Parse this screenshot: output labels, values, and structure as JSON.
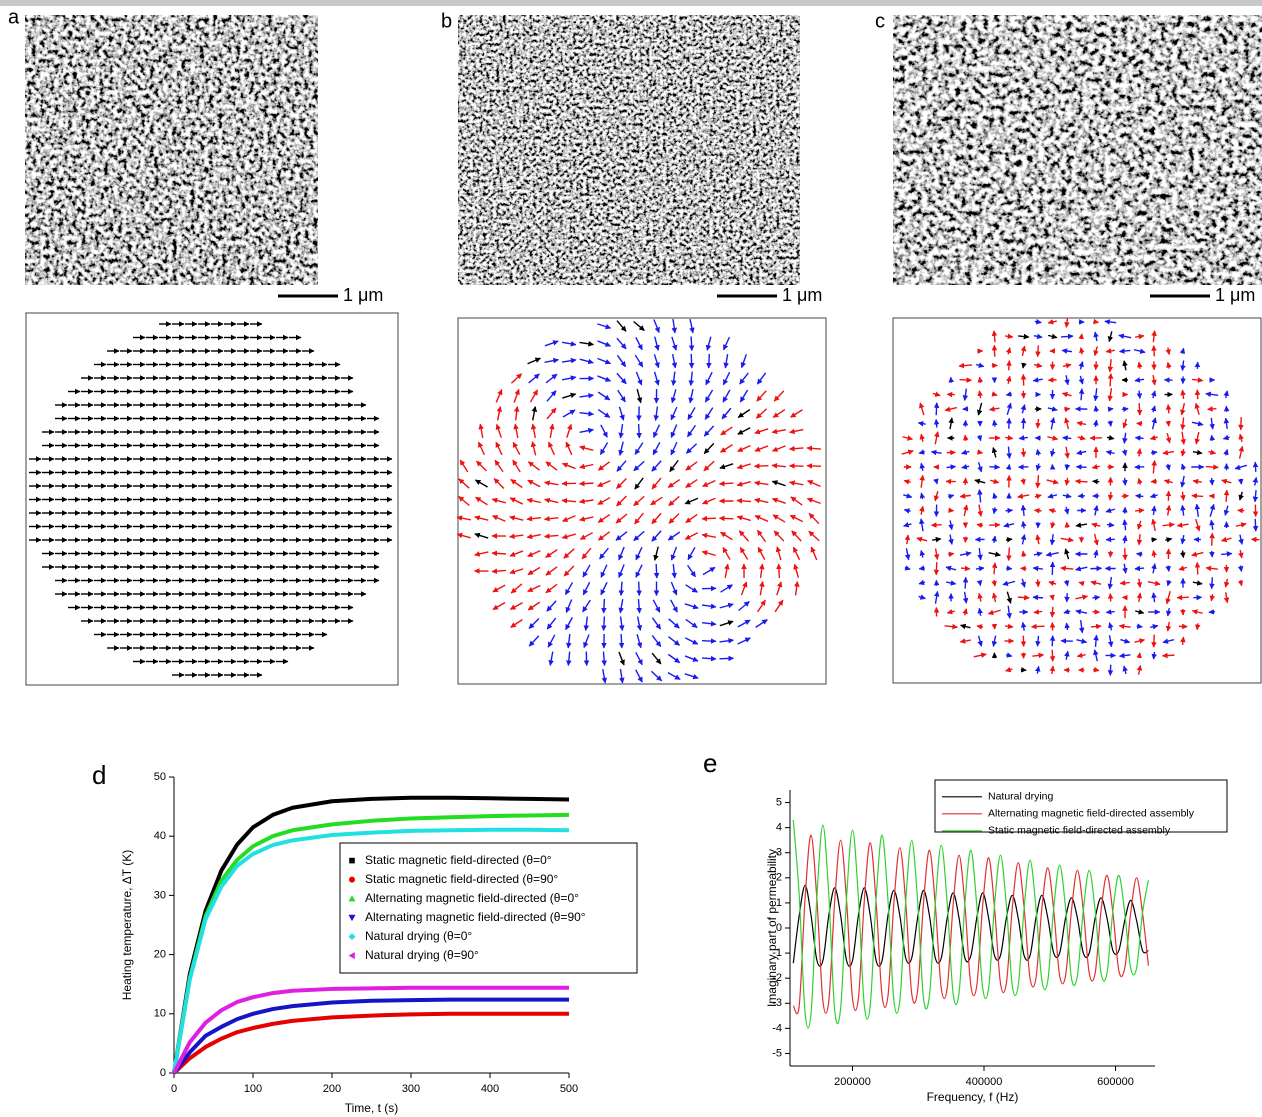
{
  "figure": {
    "panel_labels": [
      "a",
      "b",
      "c",
      "d",
      "e"
    ],
    "scale_bar": "1 μm"
  },
  "chart_data": [
    {
      "type": "line",
      "xlabel": "Time, t (s)",
      "ylabel": "Heating temperature, ΔT (K)",
      "x": [
        0,
        20,
        40,
        60,
        80,
        100,
        125,
        150,
        200,
        250,
        300,
        350,
        400,
        450,
        500
      ],
      "xlim": [
        0,
        500
      ],
      "xticks": [
        0,
        100,
        200,
        300,
        400,
        500
      ],
      "ylim": [
        0,
        50
      ],
      "yticks": [
        0,
        10,
        20,
        30,
        40,
        50
      ],
      "legend": "center right",
      "grid": false,
      "series": [
        {
          "name": "Static magnetic field-directed (θ=0°",
          "color": "#000000",
          "marker": "square",
          "values": [
            0,
            16.7,
            27.4,
            34.2,
            38.6,
            41.5,
            43.6,
            44.8,
            45.9,
            46.3,
            46.5,
            46.5,
            46.4,
            46.3,
            46.2
          ]
        },
        {
          "name": "Static magnetic field-directed (θ=90°",
          "color": "#e60000",
          "marker": "circle",
          "values": [
            0,
            2.5,
            4.4,
            5.8,
            6.9,
            7.6,
            8.3,
            8.8,
            9.4,
            9.7,
            9.9,
            10.0,
            10.0,
            10.0,
            10.0
          ]
        },
        {
          "name": "Alternating magnetic field-directed (θ=0°",
          "color": "#22dd22",
          "marker": "triangle-up",
          "values": [
            0,
            16.0,
            26.5,
            32.5,
            36.0,
            38.3,
            40.0,
            41.0,
            42.0,
            42.6,
            43.0,
            43.2,
            43.4,
            43.5,
            43.6
          ]
        },
        {
          "name": "Alternating magnetic field-directed (θ=90°",
          "color": "#1515c8",
          "marker": "triangle-down",
          "values": [
            0,
            3.5,
            6.3,
            7.8,
            9.1,
            10.0,
            10.8,
            11.3,
            11.9,
            12.2,
            12.3,
            12.4,
            12.4,
            12.4,
            12.4
          ]
        },
        {
          "name": "Natural drying (θ=0°",
          "color": "#22e0e0",
          "marker": "diamond",
          "values": [
            0,
            15.8,
            26.0,
            31.5,
            35.0,
            37.0,
            38.5,
            39.3,
            40.2,
            40.6,
            40.9,
            41.0,
            41.1,
            41.1,
            41.0
          ]
        },
        {
          "name": "Natural drying (θ=90°",
          "color": "#e020e0",
          "marker": "triangle-left",
          "values": [
            0,
            5.2,
            8.5,
            10.6,
            12.0,
            12.8,
            13.5,
            13.9,
            14.2,
            14.3,
            14.4,
            14.4,
            14.4,
            14.4,
            14.4
          ]
        }
      ]
    },
    {
      "type": "line",
      "xlabel": "Frequency, f (Hz)",
      "ylabel": "Imaginary part of permeability",
      "x": [
        110000,
        119000,
        128000,
        137000,
        146000,
        155000,
        164000,
        173000,
        182000,
        191000,
        200000,
        209000,
        218000,
        227000,
        236000,
        245000,
        254000,
        263000,
        272000,
        281000,
        290000,
        299000,
        308000,
        317000,
        326000,
        335000,
        344000,
        353000,
        362000,
        371000,
        380000,
        389000,
        398000,
        407000,
        416000,
        425000,
        434000,
        443000,
        452000,
        461000,
        470000,
        479000,
        488000,
        497000,
        506000,
        515000,
        524000,
        533000,
        542000,
        551000,
        560000,
        569000,
        578000,
        587000,
        596000,
        605000,
        614000,
        623000,
        632000,
        641000,
        650000
      ],
      "xlim": [
        105000,
        660000
      ],
      "xticks": [
        200000,
        400000,
        600000
      ],
      "ylim": [
        -5.5,
        5.5
      ],
      "yticks": [
        -5,
        -4,
        -3,
        -2,
        -1,
        0,
        1,
        2,
        3,
        4,
        5
      ],
      "legend": "upper right",
      "grid": false,
      "smooth": true,
      "series": [
        {
          "name": "Natural drying",
          "color": "#000000",
          "values": [
            -1.4,
            0.5,
            1.7,
            0.5,
            -1.3,
            -1.3,
            0.5,
            1.6,
            0.5,
            -1.3,
            -1.3,
            0.5,
            1.6,
            0.5,
            -1.3,
            -1.3,
            0.5,
            1.5,
            0.5,
            -1.2,
            -1.2,
            0.4,
            1.5,
            0.5,
            -1.2,
            -1.2,
            0.4,
            1.4,
            0.4,
            -1.2,
            -1.1,
            0.4,
            1.4,
            0.4,
            -1.1,
            -1.1,
            0.4,
            1.3,
            0.4,
            -1.1,
            -1.1,
            0.4,
            1.3,
            0.4,
            -1.0,
            -1.0,
            0.4,
            1.2,
            0.4,
            -1.0,
            -1.0,
            0.4,
            1.2,
            0.4,
            -0.9,
            -0.9,
            0.3,
            1.1,
            0.3,
            -0.9,
            -0.9
          ]
        },
        {
          "name": "Alternating magnetic field-directed assembly",
          "color": "#e03030",
          "values": [
            -3.1,
            -3.1,
            1.2,
            3.7,
            1.1,
            -2.9,
            -2.9,
            1.1,
            3.5,
            1.1,
            -2.8,
            -2.8,
            1.1,
            3.4,
            1.0,
            -2.7,
            -2.7,
            1.0,
            3.2,
            1.0,
            -2.6,
            -2.5,
            1.0,
            3.1,
            0.9,
            -2.4,
            -2.4,
            0.9,
            2.9,
            0.9,
            -2.3,
            -2.3,
            0.9,
            2.8,
            0.8,
            -2.2,
            -2.2,
            0.8,
            2.6,
            0.8,
            -2.0,
            -2.0,
            0.8,
            2.4,
            0.7,
            -1.9,
            -1.9,
            0.7,
            2.3,
            0.7,
            -1.8,
            -1.8,
            0.7,
            2.1,
            0.6,
            -1.7,
            -1.6,
            0.6,
            2.0,
            0.6,
            -1.5
          ]
        },
        {
          "name": "Static magnetic field-directed assembly",
          "color": "#30d030",
          "values": [
            4.3,
            1.3,
            -3.4,
            -3.4,
            1.3,
            4.1,
            1.3,
            -3.3,
            -3.2,
            1.2,
            3.9,
            1.2,
            -3.1,
            -3.1,
            1.2,
            3.7,
            1.1,
            -2.9,
            -2.9,
            1.1,
            3.5,
            1.1,
            -2.8,
            -2.7,
            1.0,
            3.3,
            1.0,
            -2.6,
            -2.6,
            1.0,
            3.1,
            0.9,
            -2.4,
            -2.4,
            0.9,
            2.9,
            0.9,
            -2.3,
            -2.3,
            0.8,
            2.7,
            0.8,
            -2.1,
            -2.1,
            0.8,
            2.5,
            0.8,
            -2.0,
            -1.9,
            0.7,
            2.3,
            0.7,
            -1.8,
            -1.8,
            0.7,
            2.1,
            0.6,
            -1.6,
            -1.6,
            0.6,
            1.9
          ]
        }
      ]
    }
  ]
}
